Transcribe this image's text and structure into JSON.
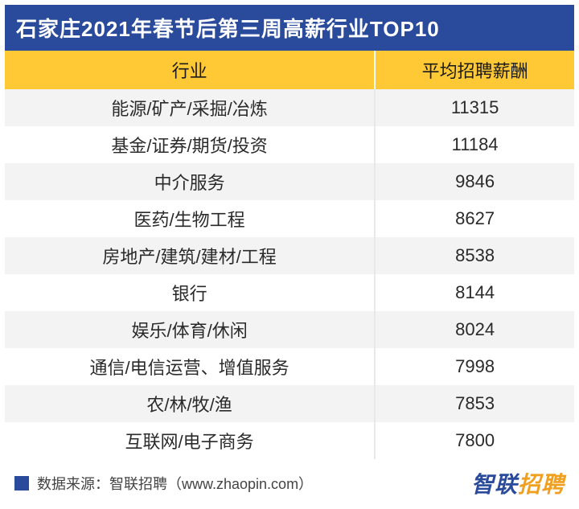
{
  "title": "石家庄2021年春节后第三周高薪行业TOP10",
  "table": {
    "columns": [
      "行业",
      "平均招聘薪酬"
    ],
    "rows": [
      {
        "industry": "能源/矿产/采掘/冶炼",
        "salary": "11315"
      },
      {
        "industry": "基金/证券/期货/投资",
        "salary": "11184"
      },
      {
        "industry": "中介服务",
        "salary": "9846"
      },
      {
        "industry": "医药/生物工程",
        "salary": "8627"
      },
      {
        "industry": "房地产/建筑/建材/工程",
        "salary": "8538"
      },
      {
        "industry": "银行",
        "salary": "8144"
      },
      {
        "industry": "娱乐/体育/休闲",
        "salary": "8024"
      },
      {
        "industry": "通信/电信运营、增值服务",
        "salary": "7998"
      },
      {
        "industry": "农/林/牧/渔",
        "salary": "7853"
      },
      {
        "industry": "互联网/电子商务",
        "salary": "7800"
      }
    ],
    "header_bg": "#ffc936",
    "title_bg": "#2a4b9b",
    "row_alt_bg": "#f3f3f3",
    "row_bg": "#ffffff"
  },
  "footer": {
    "source_label": "数据来源：智联招聘（www.zhaopin.com）",
    "brand_part1": "智联",
    "brand_part2": "招聘"
  }
}
